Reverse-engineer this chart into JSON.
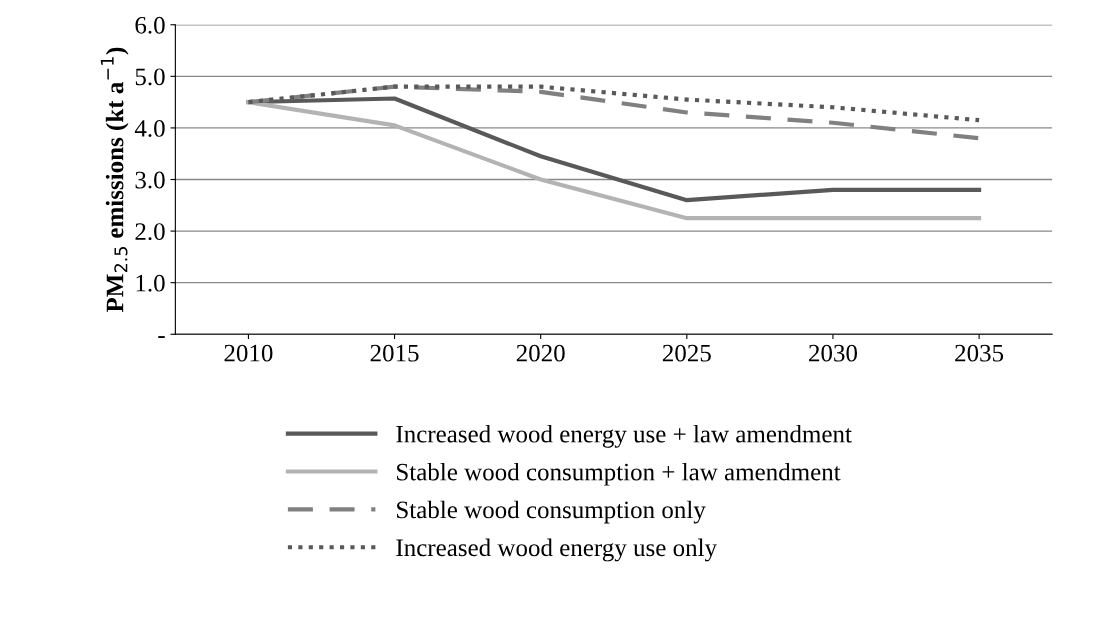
{
  "chart_data": {
    "type": "line",
    "ylabel": "PM$_{2.5}$ emissions (kt a$^{−1}$)",
    "categories": [
      "2010",
      "2015",
      "2020",
      "2025",
      "2030",
      "2035"
    ],
    "series": [
      {
        "name": "Increased wood energy use + law amendment",
        "color": "#595959",
        "values": [
          4.5,
          4.57,
          3.45,
          2.6,
          2.8,
          2.8
        ],
        "line_style": "solid"
      },
      {
        "name": "Stable wood consumption + law amendment",
        "color": "#b3b3b3",
        "values": [
          4.5,
          4.05,
          3.0,
          2.25,
          2.25,
          2.25
        ],
        "line_style": "solid"
      },
      {
        "name": "Stable wood consumption only",
        "color": "#808080",
        "values": [
          4.5,
          4.8,
          4.7,
          4.3,
          4.1,
          3.8
        ],
        "line_style": "dashed"
      },
      {
        "name": "Increased wood energy use only",
        "color": "#595959",
        "values": [
          4.5,
          4.8,
          4.8,
          4.55,
          4.4,
          4.15
        ],
        "line_style": "dotted"
      }
    ],
    "ylim": [
      0,
      6
    ],
    "yticks": [
      {
        "value": 0,
        "label": "-"
      },
      {
        "value": 1,
        "label": "1.0"
      },
      {
        "value": 2,
        "label": "2.0"
      },
      {
        "value": 3,
        "label": "3.0"
      },
      {
        "value": 4,
        "label": "4.0"
      },
      {
        "value": 5,
        "label": "5.0"
      },
      {
        "value": 6,
        "label": "6.0"
      }
    ],
    "grid": "y",
    "legend": "bottom"
  }
}
